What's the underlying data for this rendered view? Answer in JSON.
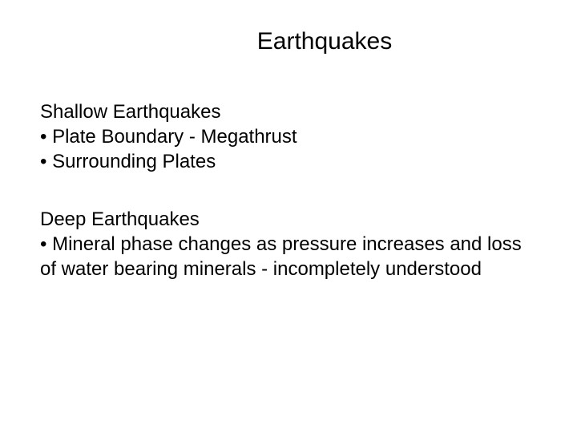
{
  "title": "Earthquakes",
  "section1": {
    "heading": "Shallow Earthquakes",
    "bullets": [
      "• Plate Boundary - Megathrust",
      "• Surrounding Plates"
    ]
  },
  "section2": {
    "heading": "Deep Earthquakes",
    "bullets": [
      "• Mineral phase changes as pressure increases and loss of water bearing minerals - incompletely understood"
    ]
  },
  "colors": {
    "background": "#ffffff",
    "text": "#000000"
  },
  "typography": {
    "font_family": "Arial",
    "title_fontsize": 30,
    "body_fontsize": 24
  }
}
